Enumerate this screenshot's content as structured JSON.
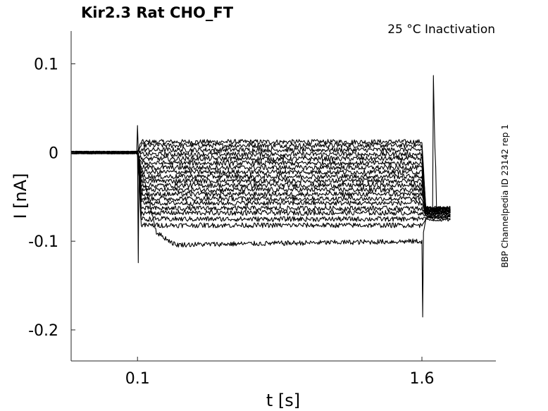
{
  "chart_data": {
    "type": "line",
    "title": "Kir2.3  Rat  CHO_FT",
    "annotation": "25 °C  Inactivation",
    "side_label": "BBP Channelpedia ID 23142 rep 1",
    "xlabel": "t [s]",
    "ylabel": "I [nA]",
    "xlim": [
      -0.25,
      1.99
    ],
    "ylim": [
      -0.235,
      0.137
    ],
    "x_ticks": [
      0.1,
      1.6
    ],
    "x_tick_labels": [
      "0.1",
      "1.6"
    ],
    "y_ticks": [
      0.1,
      0,
      -0.1,
      -0.2
    ],
    "y_tick_labels": [
      "0.1",
      "0",
      "-0.1",
      "-0.2"
    ],
    "grid": false,
    "legend": "none",
    "line_color": "#000000",
    "series": [
      {
        "values": [
          [
            -0.25,
            0.0
          ],
          [
            0.1,
            0.0
          ],
          [
            0.12,
            0.012
          ],
          [
            1.6,
            0.012
          ],
          [
            1.62,
            -0.062
          ],
          [
            1.75,
            -0.062
          ]
        ]
      },
      {
        "values": [
          [
            -0.25,
            0.0
          ],
          [
            0.1,
            0.0
          ],
          [
            0.12,
            0.008
          ],
          [
            1.6,
            0.008
          ],
          [
            1.62,
            -0.062
          ],
          [
            1.75,
            -0.062
          ]
        ]
      },
      {
        "values": [
          [
            -0.25,
            0.0
          ],
          [
            0.1,
            0.0
          ],
          [
            0.12,
            0.003
          ],
          [
            1.6,
            0.003
          ],
          [
            1.62,
            -0.063
          ],
          [
            1.75,
            -0.063
          ]
        ]
      },
      {
        "values": [
          [
            -0.25,
            0.0
          ],
          [
            0.1,
            0.0
          ],
          [
            0.12,
            -0.002
          ],
          [
            1.6,
            -0.002
          ],
          [
            1.62,
            -0.063
          ],
          [
            1.75,
            -0.063
          ]
        ]
      },
      {
        "values": [
          [
            -0.25,
            0.0
          ],
          [
            0.1,
            0.0
          ],
          [
            0.12,
            -0.007
          ],
          [
            1.6,
            -0.007
          ],
          [
            1.62,
            -0.064
          ],
          [
            1.75,
            -0.064
          ]
        ]
      },
      {
        "values": [
          [
            -0.25,
            0.0
          ],
          [
            0.1,
            0.0
          ],
          [
            0.12,
            -0.012
          ],
          [
            1.6,
            -0.012
          ],
          [
            1.62,
            -0.064
          ],
          [
            1.75,
            -0.064
          ]
        ]
      },
      {
        "values": [
          [
            -0.25,
            0.0
          ],
          [
            0.1,
            0.0
          ],
          [
            0.12,
            -0.017
          ],
          [
            1.6,
            -0.017
          ],
          [
            1.62,
            -0.065
          ],
          [
            1.75,
            -0.065
          ]
        ]
      },
      {
        "values": [
          [
            -0.25,
            0.0
          ],
          [
            0.1,
            0.0
          ],
          [
            0.12,
            -0.022
          ],
          [
            1.6,
            -0.022
          ],
          [
            1.62,
            -0.065
          ],
          [
            1.75,
            -0.065
          ]
        ]
      },
      {
        "values": [
          [
            -0.25,
            0.0
          ],
          [
            0.1,
            0.0
          ],
          [
            0.12,
            -0.027
          ],
          [
            1.6,
            -0.027
          ],
          [
            1.62,
            -0.066
          ],
          [
            1.75,
            -0.066
          ]
        ]
      },
      {
        "values": [
          [
            -0.25,
            0.0
          ],
          [
            0.1,
            0.0
          ],
          [
            0.12,
            -0.032
          ],
          [
            1.6,
            -0.032
          ],
          [
            1.62,
            -0.066
          ],
          [
            1.75,
            -0.066
          ]
        ]
      },
      {
        "values": [
          [
            -0.25,
            0.0
          ],
          [
            0.1,
            0.0
          ],
          [
            0.12,
            -0.037
          ],
          [
            1.6,
            -0.037
          ],
          [
            1.62,
            -0.067
          ],
          [
            1.75,
            -0.067
          ]
        ]
      },
      {
        "values": [
          [
            -0.25,
            0.0
          ],
          [
            0.1,
            0.0
          ],
          [
            0.12,
            -0.042
          ],
          [
            1.6,
            -0.042
          ],
          [
            1.62,
            -0.068
          ],
          [
            1.75,
            -0.068
          ]
        ]
      },
      {
        "values": [
          [
            -0.25,
            0.0
          ],
          [
            0.1,
            0.0
          ],
          [
            0.12,
            -0.047
          ],
          [
            1.6,
            -0.047
          ],
          [
            1.62,
            -0.068
          ],
          [
            1.75,
            -0.068
          ]
        ]
      },
      {
        "values": [
          [
            -0.25,
            0.0
          ],
          [
            0.1,
            0.0
          ],
          [
            0.12,
            -0.052
          ],
          [
            1.6,
            -0.052
          ],
          [
            1.62,
            -0.069
          ],
          [
            1.75,
            -0.069
          ]
        ]
      },
      {
        "values": [
          [
            -0.25,
            0.0
          ],
          [
            0.1,
            0.0
          ],
          [
            0.12,
            -0.057
          ],
          [
            1.6,
            -0.057
          ],
          [
            1.62,
            -0.07
          ],
          [
            1.75,
            -0.07
          ]
        ]
      },
      {
        "values": [
          [
            -0.25,
            0.0
          ],
          [
            0.1,
            0.0
          ],
          [
            0.12,
            -0.063
          ],
          [
            1.6,
            -0.063
          ],
          [
            1.62,
            -0.071
          ],
          [
            1.75,
            -0.071
          ]
        ]
      },
      {
        "values": [
          [
            -0.25,
            0.0
          ],
          [
            0.1,
            0.0
          ],
          [
            0.12,
            -0.068
          ],
          [
            1.6,
            -0.068
          ],
          [
            1.62,
            -0.072
          ],
          [
            1.75,
            -0.072
          ]
        ]
      },
      {
        "values": [
          [
            -0.25,
            0.0
          ],
          [
            0.1,
            0.0
          ],
          [
            0.12,
            -0.075
          ],
          [
            1.6,
            -0.075
          ],
          [
            1.62,
            -0.073
          ],
          [
            1.75,
            -0.073
          ]
        ]
      },
      {
        "values": [
          [
            -0.25,
            0.0
          ],
          [
            0.1,
            0.0
          ],
          [
            0.12,
            -0.082
          ],
          [
            1.6,
            -0.082
          ],
          [
            1.62,
            -0.074
          ],
          [
            1.75,
            -0.074
          ]
        ]
      },
      {
        "values": [
          [
            -0.25,
            0.0
          ],
          [
            0.1,
            0.0
          ],
          [
            0.2,
            -0.09
          ],
          [
            0.3,
            -0.104
          ],
          [
            1.6,
            -0.1
          ],
          [
            1.62,
            -0.076
          ],
          [
            1.75,
            -0.076
          ]
        ]
      }
    ]
  }
}
